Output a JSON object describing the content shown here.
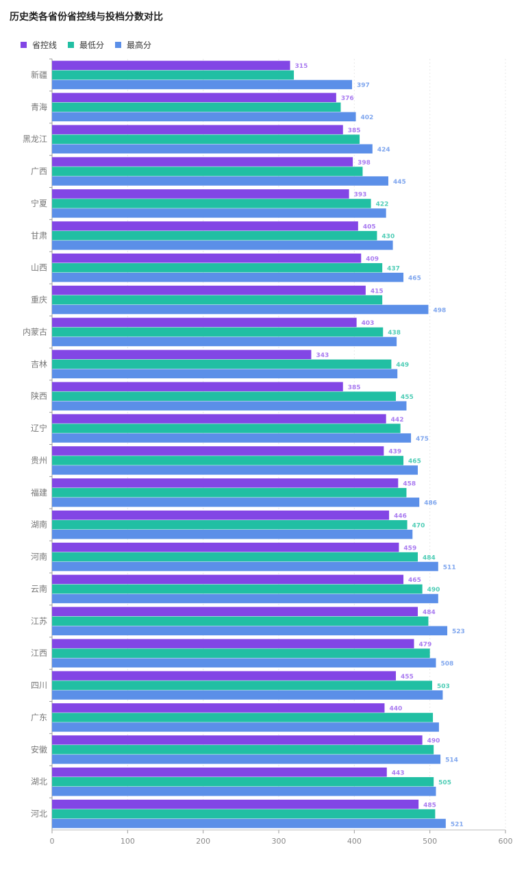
{
  "chart_data": {
    "type": "bar",
    "orientation": "horizontal",
    "title": "历史类各省份省控线与投档分数对比",
    "categories": [
      "新疆",
      "青海",
      "黑龙江",
      "广西",
      "宁夏",
      "甘肃",
      "山西",
      "重庆",
      "内蒙古",
      "吉林",
      "陕西",
      "辽宁",
      "贵州",
      "福建",
      "湖南",
      "河南",
      "云南",
      "江苏",
      "江西",
      "四川",
      "广东",
      "安徽",
      "湖北",
      "河北"
    ],
    "series": [
      {
        "name": "省控线",
        "color": "#8246E5",
        "label_color": "#A97BF0",
        "values": [
          315,
          376,
          385,
          398,
          393,
          405,
          409,
          415,
          403,
          343,
          385,
          442,
          439,
          458,
          446,
          459,
          465,
          484,
          479,
          455,
          440,
          490,
          443,
          485
        ],
        "labels": [
          "315",
          "376",
          "385",
          "398",
          "393",
          "405",
          "409",
          "415",
          "403",
          "343",
          "385",
          "442",
          "439",
          "458",
          "446",
          "459",
          "465",
          "484",
          "479",
          "455",
          "440",
          "490",
          "443",
          "485"
        ]
      },
      {
        "name": "最低分",
        "color": "#21BFA3",
        "label_color": "#4FCDB6",
        "values": [
          320,
          382,
          407,
          411,
          422,
          430,
          437,
          437,
          438,
          449,
          455,
          461,
          465,
          469,
          470,
          484,
          490,
          498,
          500,
          503,
          504,
          505,
          505,
          507
        ],
        "labels": [
          "",
          "",
          "",
          "",
          "422",
          "430",
          "437",
          "",
          "438",
          "449",
          "455",
          "",
          "465",
          "",
          "470",
          "484",
          "490",
          "",
          "",
          "503",
          "",
          "",
          "505",
          ""
        ]
      },
      {
        "name": "最高分",
        "color": "#5B8FE8",
        "label_color": "#7FA6EE",
        "values": [
          397,
          402,
          424,
          445,
          442,
          451,
          465,
          498,
          456,
          457,
          469,
          475,
          484,
          486,
          477,
          511,
          511,
          523,
          508,
          517,
          512,
          514,
          508,
          521
        ],
        "labels": [
          "397",
          "402",
          "424",
          "445",
          "",
          "",
          "465",
          "498",
          "",
          "",
          "",
          "475",
          "",
          "486",
          "",
          "511",
          "",
          "523",
          "508",
          "",
          "",
          "514",
          "",
          "521"
        ]
      }
    ],
    "xlim": [
      0,
      600
    ],
    "xticks": [
      "0",
      "100",
      "200",
      "300",
      "400",
      "500",
      "600"
    ],
    "grid": true,
    "legend_position": "top-left"
  }
}
